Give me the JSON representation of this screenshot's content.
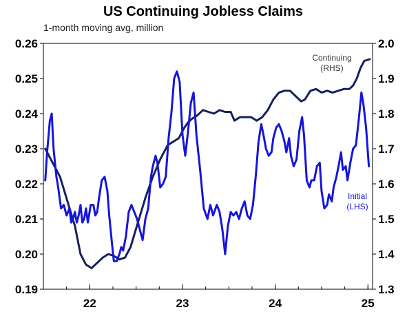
{
  "chart_data": {
    "type": "line",
    "title": "US Continuing Jobless Claims",
    "subtitle": "1-month moving avg, million",
    "xlabel": "",
    "ylabel": "",
    "x_ticks": [
      "22",
      "23",
      "24",
      "25"
    ],
    "x_tick_values": [
      2022.0,
      2023.0,
      2024.0,
      2025.0
    ],
    "xlim": [
      2021.5,
      2025.05
    ],
    "left_axis": {
      "ylim": [
        0.19,
        0.26
      ],
      "ticks": [
        "0.19",
        "0.20",
        "0.21",
        "0.22",
        "0.23",
        "0.24",
        "0.25",
        "0.26"
      ],
      "tick_values": [
        0.19,
        0.2,
        0.21,
        0.22,
        0.23,
        0.24,
        0.25,
        0.26
      ]
    },
    "right_axis": {
      "ylim": [
        1.3,
        2.0
      ],
      "ticks": [
        "1.3",
        "1.4",
        "1.5",
        "1.6",
        "1.7",
        "1.8",
        "1.9",
        "2.0"
      ],
      "tick_values": [
        1.3,
        1.4,
        1.5,
        1.6,
        1.7,
        1.8,
        1.9,
        2.0
      ]
    },
    "grid": false,
    "series": [
      {
        "name": "Continuing (RHS)",
        "label_lines": [
          "Continuing",
          "(RHS)"
        ],
        "axis": "right",
        "color": "#15215a",
        "points": [
          [
            2021.52,
            1.7
          ],
          [
            2021.6,
            1.66
          ],
          [
            2021.68,
            1.62
          ],
          [
            2021.76,
            1.55
          ],
          [
            2021.84,
            1.48
          ],
          [
            2021.9,
            1.4
          ],
          [
            2021.96,
            1.37
          ],
          [
            2022.02,
            1.36
          ],
          [
            2022.06,
            1.37
          ],
          [
            2022.1,
            1.38
          ],
          [
            2022.14,
            1.39
          ],
          [
            2022.2,
            1.4
          ],
          [
            2022.26,
            1.395
          ],
          [
            2022.32,
            1.385
          ],
          [
            2022.38,
            1.39
          ],
          [
            2022.44,
            1.42
          ],
          [
            2022.52,
            1.49
          ],
          [
            2022.6,
            1.56
          ],
          [
            2022.68,
            1.62
          ],
          [
            2022.76,
            1.67
          ],
          [
            2022.84,
            1.71
          ],
          [
            2022.9,
            1.72
          ],
          [
            2022.96,
            1.73
          ],
          [
            2023.02,
            1.76
          ],
          [
            2023.06,
            1.775
          ],
          [
            2023.1,
            1.785
          ],
          [
            2023.16,
            1.795
          ],
          [
            2023.22,
            1.81
          ],
          [
            2023.28,
            1.805
          ],
          [
            2023.34,
            1.8
          ],
          [
            2023.4,
            1.81
          ],
          [
            2023.46,
            1.805
          ],
          [
            2023.52,
            1.805
          ],
          [
            2023.56,
            1.78
          ],
          [
            2023.62,
            1.79
          ],
          [
            2023.68,
            1.79
          ],
          [
            2023.74,
            1.79
          ],
          [
            2023.8,
            1.78
          ],
          [
            2023.86,
            1.79
          ],
          [
            2023.92,
            1.81
          ],
          [
            2023.98,
            1.84
          ],
          [
            2024.04,
            1.86
          ],
          [
            2024.1,
            1.865
          ],
          [
            2024.16,
            1.865
          ],
          [
            2024.22,
            1.85
          ],
          [
            2024.28,
            1.835
          ],
          [
            2024.32,
            1.84
          ],
          [
            2024.38,
            1.865
          ],
          [
            2024.44,
            1.87
          ],
          [
            2024.5,
            1.86
          ],
          [
            2024.56,
            1.865
          ],
          [
            2024.62,
            1.86
          ],
          [
            2024.68,
            1.865
          ],
          [
            2024.74,
            1.87
          ],
          [
            2024.8,
            1.87
          ],
          [
            2024.84,
            1.88
          ],
          [
            2024.88,
            1.9
          ],
          [
            2024.92,
            1.93
          ],
          [
            2024.96,
            1.95
          ],
          [
            2025.02,
            1.955
          ]
        ]
      },
      {
        "name": "Initial (LHS)",
        "label_lines": [
          "Initial",
          "(LHS)"
        ],
        "axis": "left",
        "color": "#1515dd",
        "points": [
          [
            2021.52,
            0.221
          ],
          [
            2021.54,
            0.229
          ],
          [
            2021.57,
            0.238
          ],
          [
            2021.59,
            0.24
          ],
          [
            2021.61,
            0.23
          ],
          [
            2021.64,
            0.222
          ],
          [
            2021.66,
            0.219
          ],
          [
            2021.69,
            0.213
          ],
          [
            2021.72,
            0.214
          ],
          [
            2021.75,
            0.211
          ],
          [
            2021.78,
            0.213
          ],
          [
            2021.8,
            0.209
          ],
          [
            2021.82,
            0.21
          ],
          [
            2021.84,
            0.212
          ],
          [
            2021.86,
            0.209
          ],
          [
            2021.88,
            0.211
          ],
          [
            2021.9,
            0.214
          ],
          [
            2021.92,
            0.209
          ],
          [
            2021.94,
            0.21
          ],
          [
            2021.96,
            0.213
          ],
          [
            2021.98,
            0.209
          ],
          [
            2022.01,
            0.214
          ],
          [
            2022.04,
            0.214
          ],
          [
            2022.06,
            0.211
          ],
          [
            2022.08,
            0.212
          ],
          [
            2022.1,
            0.216
          ],
          [
            2022.13,
            0.221
          ],
          [
            2022.16,
            0.222
          ],
          [
            2022.19,
            0.218
          ],
          [
            2022.21,
            0.211
          ],
          [
            2022.24,
            0.203
          ],
          [
            2022.26,
            0.198
          ],
          [
            2022.29,
            0.198
          ],
          [
            2022.32,
            0.2
          ],
          [
            2022.34,
            0.202
          ],
          [
            2022.36,
            0.201
          ],
          [
            2022.39,
            0.205
          ],
          [
            2022.42,
            0.212
          ],
          [
            2022.45,
            0.214
          ],
          [
            2022.48,
            0.212
          ],
          [
            2022.51,
            0.21
          ],
          [
            2022.54,
            0.207
          ],
          [
            2022.57,
            0.204
          ],
          [
            2022.6,
            0.21
          ],
          [
            2022.63,
            0.213
          ],
          [
            2022.66,
            0.222
          ],
          [
            2022.68,
            0.225
          ],
          [
            2022.71,
            0.228
          ],
          [
            2022.73,
            0.226
          ],
          [
            2022.76,
            0.219
          ],
          [
            2022.79,
            0.22
          ],
          [
            2022.82,
            0.222
          ],
          [
            2022.85,
            0.233
          ],
          [
            2022.88,
            0.24
          ],
          [
            2022.91,
            0.25
          ],
          [
            2022.94,
            0.252
          ],
          [
            2022.97,
            0.249
          ],
          [
            2023.0,
            0.234
          ],
          [
            2023.03,
            0.228
          ],
          [
            2023.06,
            0.235
          ],
          [
            2023.09,
            0.243
          ],
          [
            2023.12,
            0.246
          ],
          [
            2023.15,
            0.234
          ],
          [
            2023.19,
            0.224
          ],
          [
            2023.23,
            0.213
          ],
          [
            2023.27,
            0.21
          ],
          [
            2023.3,
            0.214
          ],
          [
            2023.33,
            0.211
          ],
          [
            2023.37,
            0.214
          ],
          [
            2023.4,
            0.212
          ],
          [
            2023.43,
            0.207
          ],
          [
            2023.46,
            0.2
          ],
          [
            2023.49,
            0.208
          ],
          [
            2023.52,
            0.212
          ],
          [
            2023.55,
            0.211
          ],
          [
            2023.58,
            0.212
          ],
          [
            2023.61,
            0.21
          ],
          [
            2023.64,
            0.213
          ],
          [
            2023.67,
            0.215
          ],
          [
            2023.7,
            0.211
          ],
          [
            2023.73,
            0.21
          ],
          [
            2023.76,
            0.214
          ],
          [
            2023.79,
            0.222
          ],
          [
            2023.82,
            0.232
          ],
          [
            2023.85,
            0.237
          ],
          [
            2023.88,
            0.233
          ],
          [
            2023.9,
            0.23
          ],
          [
            2023.93,
            0.228
          ],
          [
            2023.96,
            0.229
          ],
          [
            2023.98,
            0.233
          ],
          [
            2024.01,
            0.236
          ],
          [
            2024.04,
            0.237
          ],
          [
            2024.07,
            0.235
          ],
          [
            2024.1,
            0.232
          ],
          [
            2024.12,
            0.229
          ],
          [
            2024.15,
            0.233
          ],
          [
            2024.17,
            0.228
          ],
          [
            2024.2,
            0.225
          ],
          [
            2024.23,
            0.227
          ],
          [
            2024.26,
            0.235
          ],
          [
            2024.29,
            0.239
          ],
          [
            2024.31,
            0.234
          ],
          [
            2024.34,
            0.221
          ],
          [
            2024.37,
            0.219
          ],
          [
            2024.39,
            0.221
          ],
          [
            2024.42,
            0.221
          ],
          [
            2024.45,
            0.225
          ],
          [
            2024.48,
            0.226
          ],
          [
            2024.5,
            0.218
          ],
          [
            2024.53,
            0.213
          ],
          [
            2024.56,
            0.214
          ],
          [
            2024.58,
            0.217
          ],
          [
            2024.61,
            0.215
          ],
          [
            2024.63,
            0.219
          ],
          [
            2024.66,
            0.222
          ],
          [
            2024.69,
            0.226
          ],
          [
            2024.71,
            0.229
          ],
          [
            2024.73,
            0.224
          ],
          [
            2024.76,
            0.225
          ],
          [
            2024.78,
            0.221
          ],
          [
            2024.81,
            0.226
          ],
          [
            2024.84,
            0.23
          ],
          [
            2024.87,
            0.231
          ],
          [
            2024.9,
            0.238
          ],
          [
            2024.93,
            0.246
          ],
          [
            2024.95,
            0.243
          ],
          [
            2024.98,
            0.236
          ],
          [
            2025.01,
            0.225
          ]
        ]
      }
    ]
  }
}
